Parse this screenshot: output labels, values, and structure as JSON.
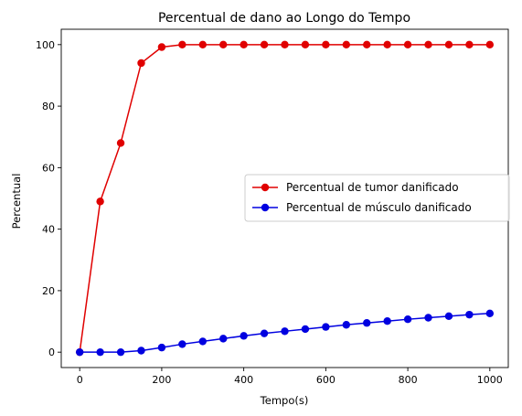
{
  "chart_data": {
    "type": "line",
    "title": "Percentual de dano ao Longo do Tempo",
    "xlabel": "Tempo(s)",
    "ylabel": "Percentual",
    "xlim": [
      -45,
      1045
    ],
    "ylim": [
      -5,
      105
    ],
    "xticks": [
      0,
      200,
      400,
      600,
      800,
      1000
    ],
    "yticks": [
      0,
      20,
      40,
      60,
      80,
      100
    ],
    "grid": false,
    "legend_position": "center-right",
    "x": [
      0,
      50,
      100,
      150,
      200,
      250,
      300,
      350,
      400,
      450,
      500,
      550,
      600,
      650,
      700,
      750,
      800,
      850,
      900,
      950,
      1000
    ],
    "series": [
      {
        "name": "Percentual de tumor danificado",
        "color": "#e00000",
        "marker": "circle",
        "values": [
          0,
          49,
          68,
          94,
          99.2,
          100,
          100,
          100,
          100,
          100,
          100,
          100,
          100,
          100,
          100,
          100,
          100,
          100,
          100,
          100,
          100
        ]
      },
      {
        "name": "Percentual de músculo danificado",
        "color": "#0000e0",
        "marker": "circle",
        "values": [
          0,
          0,
          0,
          0.5,
          1.5,
          2.6,
          3.5,
          4.4,
          5.3,
          6.1,
          6.8,
          7.5,
          8.2,
          8.9,
          9.5,
          10.1,
          10.7,
          11.2,
          11.7,
          12.2,
          12.6
        ]
      }
    ]
  }
}
